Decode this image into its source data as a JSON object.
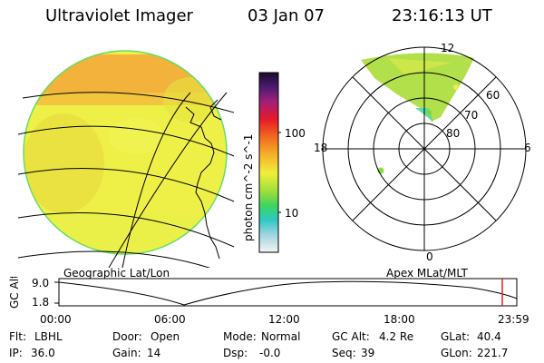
{
  "header": {
    "title": "Ultraviolet Imager",
    "date": "03 Jan 07",
    "time": "23:16:13 UT"
  },
  "colorbar": {
    "label": "photon cm^-2 s^-1",
    "tick_high": "100",
    "tick_low": "10"
  },
  "left_panel": {
    "caption": "Geographic Lat/Lon"
  },
  "right_panel": {
    "caption": "Apex  MLat/MLT",
    "mlt_labels": {
      "top": "12",
      "left": "18",
      "right": "6",
      "bottom": "0"
    },
    "lat_labels": [
      "60",
      "70",
      "80"
    ]
  },
  "altitude_plot": {
    "axis_label": "GC Alt",
    "y_ticks": [
      "9.0",
      "1.8"
    ],
    "x_ticks": [
      "00:00",
      "06:00",
      "12:00",
      "18:00",
      "23:59"
    ]
  },
  "info": {
    "filter_label": "Flt:",
    "filter_value": "LBHL",
    "ip_label": "IP:",
    "ip_value": "36.0",
    "door_label": "Door:",
    "door_value": "Open",
    "gain_label": "Gain:",
    "gain_value": "14",
    "mode_label": "Mode:",
    "mode_value": "Normal",
    "dsp_label": "Dsp:",
    "dsp_value": "-0.0",
    "gcalt_label": "GC Alt:",
    "gcalt_value": "4.2 Re",
    "seq_label": "Seq:",
    "seq_value": "39",
    "glat_label": "GLat:",
    "glat_value": "40.4",
    "glon_label": "GLon:",
    "glon_value": "221.7"
  },
  "colors": {
    "disk_main": "#f0ee46",
    "disk_bright": "#e9d53a",
    "cap_orange": "#f0a83a",
    "polar_green": "#a9df45",
    "marker": "#ee1c1c"
  }
}
